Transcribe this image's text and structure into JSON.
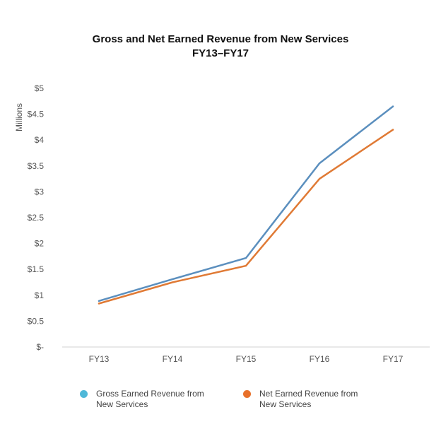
{
  "chart_data": {
    "type": "line",
    "title": "Gross and Net Earned Revenue from New Services",
    "subtitle": "FY13–FY17",
    "xlabel": "",
    "ylabel": "Millions",
    "categories": [
      "FY13",
      "FY14",
      "FY15",
      "FY16",
      "FY17"
    ],
    "ylim": [
      0,
      5
    ],
    "yticks": [
      0,
      0.5,
      1,
      1.5,
      2,
      2.5,
      3,
      3.5,
      4,
      4.5,
      5
    ],
    "ytick_labels": [
      "$-",
      "$0.5",
      "$1",
      "$1.5",
      "$2",
      "$2.5",
      "$3",
      "$3.5",
      "$4",
      "$4.5",
      "$5"
    ],
    "series": [
      {
        "name": "Gross Earned Revenue from New Services",
        "values": [
          0.89,
          1.31,
          1.72,
          3.55,
          4.65
        ],
        "line_color": "#5b8fbe",
        "legend_color": "#4fb8d8"
      },
      {
        "name": "Net Earned Revenue from New Services",
        "values": [
          0.84,
          1.25,
          1.57,
          3.25,
          4.2
        ],
        "line_color": "#e07a35",
        "legend_color": "#e8702a"
      }
    ],
    "legend": "bottom"
  },
  "legend": {
    "gross_line1": "Gross Earned Revenue from",
    "gross_line2": "New Services",
    "net_line1": "Net Earned Revenue from",
    "net_line2": "New Services"
  }
}
